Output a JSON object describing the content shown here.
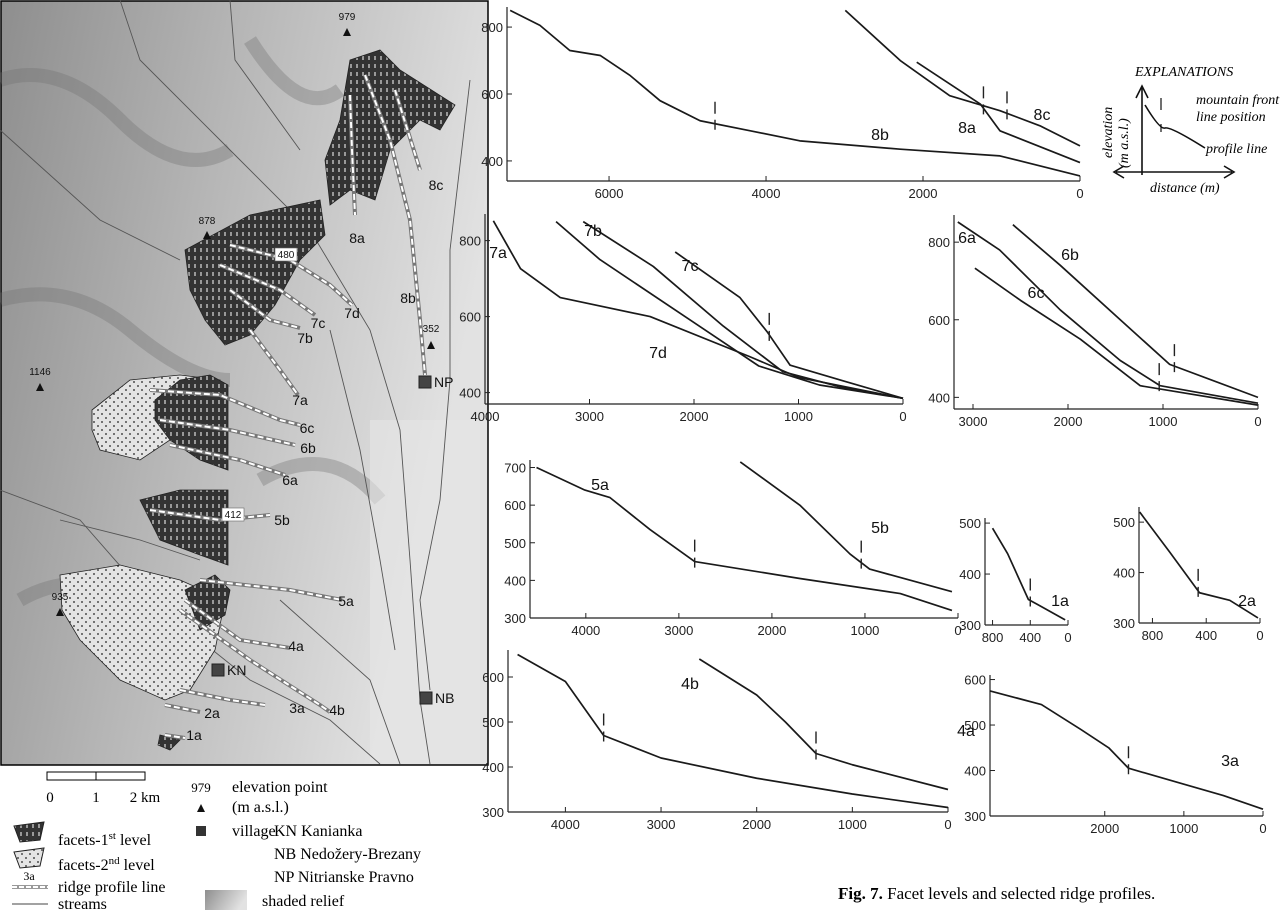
{
  "map": {
    "elevation_points": [
      979,
      878,
      480,
      352,
      1146,
      412,
      935
    ],
    "ridges": [
      "8c",
      "8a",
      "8b",
      "7d",
      "7c",
      "7b",
      "7a",
      "6c",
      "6b",
      "6a",
      "5b",
      "5a",
      "4a",
      "4b",
      "3a",
      "2a",
      "1a"
    ],
    "villages": [
      "NP",
      "KN",
      "NB"
    ]
  },
  "legend": {
    "scale": [
      "0",
      "1",
      "2 km"
    ],
    "elevation_sample": 979,
    "elevation": [
      "elevation point",
      "(m a.s.l.)"
    ],
    "village": "village",
    "village_names": [
      "KN Kanianka",
      "NB Nedožery-Brezany",
      "NP Nitrianske Pravno"
    ],
    "facets1": {
      "text": "facets-1",
      "sup": "st",
      "rest": " level"
    },
    "facets2": {
      "text": "facets-2",
      "sup": "nd",
      "rest": " level"
    },
    "ridge_sample": "3a",
    "ridge": "ridge profile line",
    "streams": "streams",
    "relief": "shaded relief"
  },
  "explanations": {
    "title": "EXPLANATIONS",
    "front": [
      "mountain front",
      "line position"
    ],
    "elevation": "elevation",
    "elevation_unit": "(m a.s.l.)",
    "profile": "profile line",
    "distance": "distance (m)"
  },
  "caption": {
    "label": "Fig. 7.",
    "text": " Facet levels and selected ridge profiles."
  },
  "chart_data": [
    {
      "type": "line",
      "color": "#1a1a1a",
      "xlim": [
        7300,
        0
      ],
      "ylim": [
        340,
        860
      ],
      "xticks": [
        6000,
        4000,
        2000,
        0
      ],
      "yticks": [
        400,
        600,
        800
      ],
      "series": [
        {
          "name": "8a",
          "x": [
            2080,
            1270,
            1020,
            0
          ],
          "values": [
            695,
            570,
            490,
            395
          ],
          "front": 1230
        },
        {
          "name": "8b",
          "x": [
            7260,
            6880,
            6500,
            6110,
            5730,
            5350,
            4840,
            4200,
            3570,
            2290,
            1020,
            0
          ],
          "values": [
            850,
            805,
            730,
            715,
            655,
            580,
            520,
            490,
            460,
            435,
            415,
            355
          ],
          "front": 4650
        },
        {
          "name": "8c",
          "x": [
            2990,
            2290,
            1660,
            1020,
            510,
            0
          ],
          "values": [
            850,
            700,
            595,
            550,
            505,
            445
          ],
          "front": 930
        }
      ]
    },
    {
      "type": "line",
      "color": "#1a1a1a",
      "xlim": [
        4000,
        0
      ],
      "ylim": [
        370,
        870
      ],
      "xticks": [
        4000,
        3000,
        2000,
        1000,
        0
      ],
      "yticks": [
        400,
        600,
        800
      ],
      "series": [
        {
          "name": "7a",
          "x": [
            3920,
            3660,
            3280,
            2420,
            1470,
            1000,
            0
          ],
          "values": [
            852,
            726,
            650,
            600,
            495,
            440,
            385
          ]
        },
        {
          "name": "7b",
          "x": [
            3060,
            2390,
            1720,
            1150,
            600,
            0
          ],
          "values": [
            850,
            732,
            575,
            455,
            415,
            385
          ]
        },
        {
          "name": "7c",
          "x": [
            2180,
            1560,
            1300,
            1080,
            500,
            0
          ],
          "values": [
            770,
            650,
            560,
            472,
            425,
            385
          ],
          "front": 1280
        },
        {
          "name": "7d",
          "x": [
            3320,
            2900,
            1950,
            1380,
            800,
            0
          ],
          "values": [
            850,
            750,
            575,
            470,
            420,
            385
          ]
        }
      ]
    },
    {
      "type": "line",
      "color": "#1a1a1a",
      "xlim": [
        3200,
        0
      ],
      "ylim": [
        370,
        870
      ],
      "xticks": [
        3000,
        2000,
        1000,
        0
      ],
      "yticks": [
        400,
        600,
        800
      ],
      "series": [
        {
          "name": "6a",
          "x": [
            3160,
            2720,
            2080,
            1450,
            1030,
            0
          ],
          "values": [
            852,
            780,
            625,
            495,
            430,
            385
          ],
          "front": 1040
        },
        {
          "name": "6b",
          "x": [
            2580,
            2080,
            1450,
            930,
            0
          ],
          "values": [
            845,
            740,
            600,
            485,
            400
          ],
          "front": 880
        },
        {
          "name": "6c",
          "x": [
            2980,
            2500,
            1870,
            1240,
            0
          ],
          "values": [
            733,
            650,
            550,
            430,
            380
          ]
        }
      ]
    },
    {
      "type": "line",
      "color": "#1a1a1a",
      "xlim": [
        4600,
        0
      ],
      "ylim": [
        300,
        720
      ],
      "xticks": [
        4000,
        3000,
        2000,
        1000,
        0
      ],
      "yticks": [
        300,
        400,
        500,
        600,
        700
      ],
      "series": [
        {
          "name": "5a",
          "x": [
            4530,
            4010,
            3740,
            3310,
            2830,
            1700,
            620,
            65
          ],
          "values": [
            700,
            640,
            620,
            535,
            450,
            405,
            365,
            320
          ],
          "front": 2830
        },
        {
          "name": "5b",
          "x": [
            2340,
            1700,
            1160,
            950,
            65
          ],
          "values": [
            715,
            600,
            470,
            430,
            370
          ],
          "front": 1040
        }
      ]
    },
    {
      "type": "line",
      "color": "#1a1a1a",
      "xlim": [
        880,
        0
      ],
      "ylim": [
        300,
        510
      ],
      "xticks": [
        800,
        400,
        0
      ],
      "yticks": [
        300,
        400,
        500
      ],
      "series": [
        {
          "name": "1a",
          "x": [
            800,
            640,
            420,
            320,
            30
          ],
          "values": [
            490,
            440,
            350,
            340,
            310
          ],
          "front": 400
        }
      ]
    },
    {
      "type": "line",
      "color": "#1a1a1a",
      "xlim": [
        900,
        0
      ],
      "ylim": [
        300,
        530
      ],
      "xticks": [
        800,
        400,
        0
      ],
      "yticks": [
        300,
        400,
        500
      ],
      "series": [
        {
          "name": "2a",
          "x": [
            895,
            670,
            450,
            225,
            15
          ],
          "values": [
            520,
            440,
            360,
            345,
            310
          ],
          "front": 460
        }
      ]
    },
    {
      "type": "line",
      "color": "#1a1a1a",
      "xlim": [
        4600,
        0
      ],
      "ylim": [
        300,
        660
      ],
      "xticks": [
        4000,
        3000,
        2000,
        1000,
        0
      ],
      "yticks": [
        300,
        400,
        500,
        600
      ],
      "series": [
        {
          "name": "4b",
          "x": [
            4500,
            4000,
            3600,
            3000,
            2000,
            1000,
            0
          ],
          "values": [
            650,
            590,
            470,
            420,
            375,
            340,
            310
          ],
          "front": 3600
        },
        {
          "name": "4a",
          "x": [
            2600,
            2000,
            1700,
            1380,
            1000,
            0
          ],
          "values": [
            640,
            560,
            500,
            430,
            405,
            350
          ],
          "front": 1380
        }
      ]
    },
    {
      "type": "line",
      "color": "#1a1a1a",
      "xlim": [
        3450,
        0
      ],
      "ylim": [
        300,
        610
      ],
      "xticks": [
        2000,
        1000,
        0
      ],
      "yticks": [
        300,
        400,
        500,
        600
      ],
      "series": [
        {
          "name": "3a",
          "x": [
            3450,
            2800,
            2300,
            1950,
            1700,
            1000,
            500,
            0
          ],
          "values": [
            575,
            545,
            490,
            450,
            405,
            370,
            345,
            315
          ],
          "front": 1700
        }
      ]
    }
  ]
}
